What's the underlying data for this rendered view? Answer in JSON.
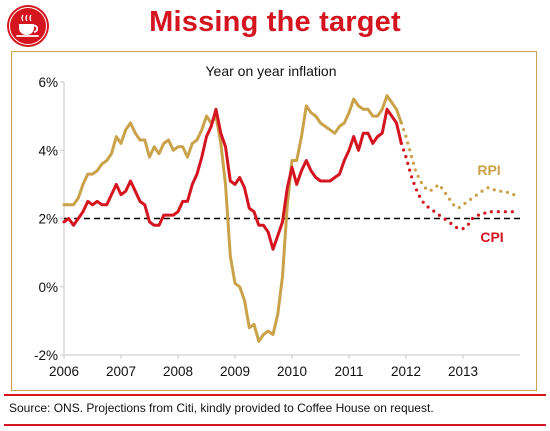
{
  "header": {
    "title": "Missing the target"
  },
  "footer": {
    "source": "Source: ONS. Projections from Citi, kindly provided to Coffee House on request."
  },
  "colors": {
    "brand_red": "#d4141e",
    "rpi": "#c9a24a",
    "cpi": "#d4141e",
    "target": "#000000"
  },
  "chart_data": {
    "type": "line",
    "title": "Year on year inflation",
    "xlabel": "",
    "ylabel": "",
    "x_tick_labels": [
      "2006",
      "2007",
      "2008",
      "2009",
      "2010",
      "2011",
      "2012",
      "2013"
    ],
    "y_tick_labels": [
      "-2%",
      "0%",
      "2%",
      "4%",
      "6%"
    ],
    "xlim": [
      2006,
      2014
    ],
    "ylim": [
      -2,
      6
    ],
    "grid": false,
    "target_line": {
      "y": 2,
      "style": "dashed"
    },
    "series": [
      {
        "name": "RPI",
        "style": "solid",
        "x": [
          2006.0,
          2006.083,
          2006.167,
          2006.25,
          2006.333,
          2006.417,
          2006.5,
          2006.583,
          2006.667,
          2006.75,
          2006.833,
          2006.917,
          2007.0,
          2007.083,
          2007.167,
          2007.25,
          2007.333,
          2007.417,
          2007.5,
          2007.583,
          2007.667,
          2007.75,
          2007.833,
          2007.917,
          2008.0,
          2008.083,
          2008.167,
          2008.25,
          2008.333,
          2008.417,
          2008.5,
          2008.583,
          2008.667,
          2008.75,
          2008.833,
          2008.917,
          2009.0,
          2009.083,
          2009.167,
          2009.25,
          2009.333,
          2009.417,
          2009.5,
          2009.583,
          2009.667,
          2009.75,
          2009.833,
          2009.917,
          2010.0,
          2010.083,
          2010.167,
          2010.25,
          2010.333,
          2010.417,
          2010.5,
          2010.583,
          2010.667,
          2010.75,
          2010.833,
          2010.917,
          2011.0,
          2011.083,
          2011.167,
          2011.25,
          2011.333,
          2011.417,
          2011.5,
          2011.583,
          2011.667,
          2011.75,
          2011.833,
          2011.917
        ],
        "values": [
          2.4,
          2.4,
          2.4,
          2.6,
          3.0,
          3.3,
          3.3,
          3.4,
          3.6,
          3.7,
          3.9,
          4.4,
          4.2,
          4.6,
          4.8,
          4.5,
          4.3,
          4.3,
          3.8,
          4.1,
          3.9,
          4.2,
          4.3,
          4.0,
          4.1,
          4.1,
          3.8,
          4.2,
          4.3,
          4.6,
          5.0,
          4.8,
          5.0,
          4.2,
          3.0,
          0.9,
          0.1,
          0.0,
          -0.4,
          -1.2,
          -1.1,
          -1.6,
          -1.4,
          -1.3,
          -1.4,
          -0.8,
          0.3,
          2.4,
          3.7,
          3.7,
          4.4,
          5.3,
          5.1,
          5.0,
          4.8,
          4.7,
          4.6,
          4.5,
          4.7,
          4.8,
          5.1,
          5.5,
          5.3,
          5.2,
          5.2,
          5.0,
          5.0,
          5.2,
          5.6,
          5.4,
          5.2,
          4.8
        ]
      },
      {
        "name": "RPI projection",
        "style": "dotted",
        "x": [
          2011.917,
          2012.0,
          2012.083,
          2012.167,
          2012.25,
          2012.333,
          2012.417,
          2012.5,
          2012.583,
          2012.667,
          2012.75,
          2012.833,
          2012.917,
          2013.0,
          2013.083,
          2013.167,
          2013.25,
          2013.333,
          2013.417,
          2013.5,
          2013.583,
          2013.667,
          2013.75,
          2013.833,
          2013.917
        ],
        "values": [
          4.8,
          4.4,
          3.9,
          3.4,
          3.1,
          2.9,
          2.8,
          2.9,
          3.0,
          2.8,
          2.6,
          2.4,
          2.3,
          2.4,
          2.5,
          2.6,
          2.7,
          2.8,
          2.9,
          2.9,
          2.8,
          2.8,
          2.8,
          2.7,
          2.7
        ]
      },
      {
        "name": "CPI",
        "style": "solid",
        "x": [
          2006.0,
          2006.083,
          2006.167,
          2006.25,
          2006.333,
          2006.417,
          2006.5,
          2006.583,
          2006.667,
          2006.75,
          2006.833,
          2006.917,
          2007.0,
          2007.083,
          2007.167,
          2007.25,
          2007.333,
          2007.417,
          2007.5,
          2007.583,
          2007.667,
          2007.75,
          2007.833,
          2007.917,
          2008.0,
          2008.083,
          2008.167,
          2008.25,
          2008.333,
          2008.417,
          2008.5,
          2008.583,
          2008.667,
          2008.75,
          2008.833,
          2008.917,
          2009.0,
          2009.083,
          2009.167,
          2009.25,
          2009.333,
          2009.417,
          2009.5,
          2009.583,
          2009.667,
          2009.75,
          2009.833,
          2009.917,
          2010.0,
          2010.083,
          2010.167,
          2010.25,
          2010.333,
          2010.417,
          2010.5,
          2010.583,
          2010.667,
          2010.75,
          2010.833,
          2010.917,
          2011.0,
          2011.083,
          2011.167,
          2011.25,
          2011.333,
          2011.417,
          2011.5,
          2011.583,
          2011.667,
          2011.75,
          2011.833,
          2011.917
        ],
        "values": [
          1.9,
          2.0,
          1.8,
          2.0,
          2.2,
          2.5,
          2.4,
          2.5,
          2.4,
          2.4,
          2.7,
          3.0,
          2.7,
          2.8,
          3.1,
          2.8,
          2.5,
          2.4,
          1.9,
          1.8,
          1.8,
          2.1,
          2.1,
          2.1,
          2.2,
          2.5,
          2.5,
          3.0,
          3.3,
          3.8,
          4.4,
          4.7,
          5.2,
          4.5,
          4.1,
          3.1,
          3.0,
          3.2,
          2.9,
          2.3,
          2.2,
          1.8,
          1.8,
          1.6,
          1.1,
          1.5,
          1.9,
          2.9,
          3.5,
          3.0,
          3.4,
          3.7,
          3.4,
          3.2,
          3.1,
          3.1,
          3.1,
          3.2,
          3.3,
          3.7,
          4.0,
          4.4,
          4.0,
          4.5,
          4.5,
          4.2,
          4.4,
          4.5,
          5.2,
          5.0,
          4.8,
          4.2
        ]
      },
      {
        "name": "CPI projection",
        "style": "dotted",
        "x": [
          2011.917,
          2012.0,
          2012.083,
          2012.167,
          2012.25,
          2012.333,
          2012.417,
          2012.5,
          2012.583,
          2012.667,
          2012.75,
          2012.833,
          2012.917,
          2013.0,
          2013.083,
          2013.167,
          2013.25,
          2013.333,
          2013.417,
          2013.5,
          2013.583,
          2013.667,
          2013.75,
          2013.833,
          2013.917
        ],
        "values": [
          4.2,
          3.8,
          3.3,
          2.9,
          2.6,
          2.4,
          2.3,
          2.2,
          2.1,
          2.0,
          1.9,
          1.8,
          1.7,
          1.7,
          1.8,
          2.0,
          2.1,
          2.1,
          2.2,
          2.2,
          2.2,
          2.2,
          2.2,
          2.2,
          2.2
        ]
      }
    ],
    "annotations": [
      {
        "text": "RPI",
        "color": "#c9a24a"
      },
      {
        "text": "CPI",
        "color": "#d4141e"
      }
    ]
  }
}
